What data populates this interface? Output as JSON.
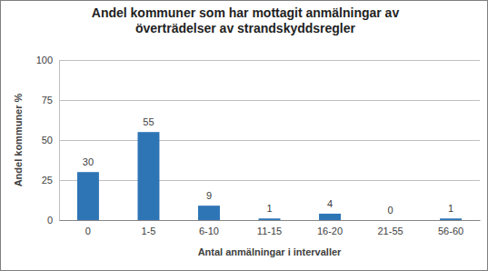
{
  "chart_data": {
    "type": "bar",
    "title": "Andel kommuner som har mottagit anmälningar av överträdelser av strandskyddsregler",
    "x_label": "Antal anmälningar i intervaller",
    "y_label": "Andel kommuner %",
    "categories": [
      "0",
      "1-5",
      "6-10",
      "11-15",
      "16-20",
      "21-55",
      "56-60"
    ],
    "values": [
      30,
      55,
      9,
      1,
      4,
      0,
      1
    ],
    "color": "#2e75b6",
    "ylim": [
      0,
      100
    ],
    "yticks": [
      0,
      25,
      50,
      75,
      100
    ],
    "grid": true,
    "data_labels": true
  }
}
